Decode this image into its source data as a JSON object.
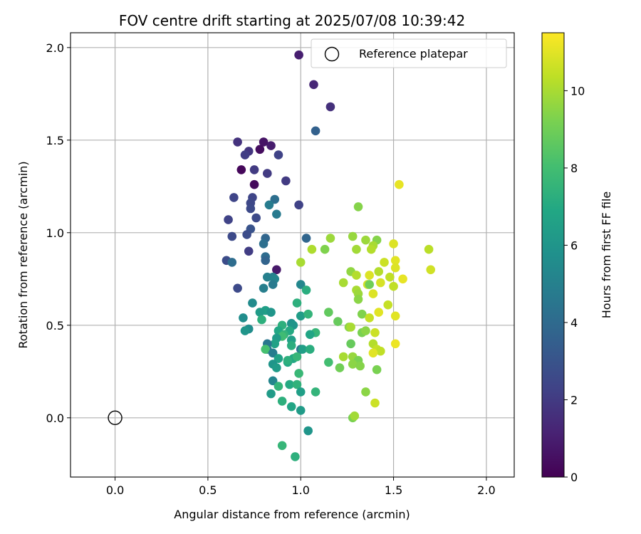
{
  "chart_data": {
    "type": "scatter",
    "title": "FOV centre drift starting at 2025/07/08 10:39:42",
    "xlabel": "Angular distance from reference (arcmin)",
    "ylabel": "Rotation from reference (arcmin)",
    "xlim": [
      -0.24,
      2.15
    ],
    "ylim": [
      -0.32,
      2.08
    ],
    "xticks": [
      0.0,
      0.5,
      1.0,
      1.5,
      2.0
    ],
    "xtick_labels": [
      "0.0",
      "0.5",
      "1.0",
      "1.5",
      "2.0"
    ],
    "yticks": [
      0.0,
      0.5,
      1.0,
      1.5,
      2.0
    ],
    "ytick_labels": [
      "0.0",
      "0.5",
      "1.0",
      "1.5",
      "2.0"
    ],
    "grid": true,
    "legend": {
      "label": "Reference platepar",
      "placement": "top-right"
    },
    "reference_point": {
      "x": 0.0,
      "y": 0.0
    },
    "colorbar": {
      "label": "Hours from first FF file",
      "range": [
        0,
        11.5
      ],
      "ticks": [
        0,
        2,
        4,
        6,
        8,
        10
      ],
      "tick_labels": [
        "0",
        "2",
        "4",
        "6",
        "8",
        "10"
      ],
      "colormap": "viridis"
    },
    "points": [
      {
        "x": 0.99,
        "y": 1.96,
        "c": 1.0
      },
      {
        "x": 1.07,
        "y": 1.8,
        "c": 1.3
      },
      {
        "x": 1.16,
        "y": 1.68,
        "c": 1.6
      },
      {
        "x": 1.08,
        "y": 1.55,
        "c": 3.6
      },
      {
        "x": 0.66,
        "y": 1.49,
        "c": 1.7
      },
      {
        "x": 0.8,
        "y": 1.49,
        "c": 0.6
      },
      {
        "x": 0.84,
        "y": 1.47,
        "c": 0.9
      },
      {
        "x": 0.78,
        "y": 1.45,
        "c": 0.4
      },
      {
        "x": 0.72,
        "y": 1.44,
        "c": 1.8
      },
      {
        "x": 0.7,
        "y": 1.42,
        "c": 2.1
      },
      {
        "x": 0.88,
        "y": 1.42,
        "c": 2.3
      },
      {
        "x": 0.68,
        "y": 1.34,
        "c": 0.2
      },
      {
        "x": 0.75,
        "y": 1.34,
        "c": 2.0
      },
      {
        "x": 0.82,
        "y": 1.32,
        "c": 2.0
      },
      {
        "x": 0.92,
        "y": 1.28,
        "c": 2.0
      },
      {
        "x": 0.75,
        "y": 1.26,
        "c": 0.3
      },
      {
        "x": 0.64,
        "y": 1.19,
        "c": 2.4
      },
      {
        "x": 0.74,
        "y": 1.19,
        "c": 2.4
      },
      {
        "x": 0.86,
        "y": 1.18,
        "c": 4.2
      },
      {
        "x": 0.73,
        "y": 1.16,
        "c": 2.5
      },
      {
        "x": 0.83,
        "y": 1.15,
        "c": 4.8
      },
      {
        "x": 0.73,
        "y": 1.13,
        "c": 2.6
      },
      {
        "x": 0.99,
        "y": 1.15,
        "c": 2.3
      },
      {
        "x": 0.87,
        "y": 1.1,
        "c": 4.7
      },
      {
        "x": 0.76,
        "y": 1.08,
        "c": 2.6
      },
      {
        "x": 0.61,
        "y": 1.07,
        "c": 2.3
      },
      {
        "x": 0.73,
        "y": 1.02,
        "c": 3.0
      },
      {
        "x": 0.71,
        "y": 0.99,
        "c": 2.7
      },
      {
        "x": 0.63,
        "y": 0.98,
        "c": 2.6
      },
      {
        "x": 0.81,
        "y": 0.97,
        "c": 3.8
      },
      {
        "x": 1.03,
        "y": 0.97,
        "c": 3.8
      },
      {
        "x": 0.8,
        "y": 0.94,
        "c": 4.2
      },
      {
        "x": 0.72,
        "y": 0.9,
        "c": 2.1
      },
      {
        "x": 0.81,
        "y": 0.87,
        "c": 4.1
      },
      {
        "x": 0.81,
        "y": 0.85,
        "c": 3.7
      },
      {
        "x": 0.6,
        "y": 0.85,
        "c": 2.7
      },
      {
        "x": 0.63,
        "y": 0.84,
        "c": 4.1
      },
      {
        "x": 0.87,
        "y": 0.8,
        "c": 0.8
      },
      {
        "x": 0.82,
        "y": 0.76,
        "c": 5.0
      },
      {
        "x": 0.85,
        "y": 0.76,
        "c": 5.0
      },
      {
        "x": 0.86,
        "y": 0.75,
        "c": 5.2
      },
      {
        "x": 0.85,
        "y": 0.72,
        "c": 4.7
      },
      {
        "x": 0.8,
        "y": 0.7,
        "c": 4.9
      },
      {
        "x": 0.66,
        "y": 0.7,
        "c": 2.6
      },
      {
        "x": 1.0,
        "y": 0.72,
        "c": 5.3
      },
      {
        "x": 1.03,
        "y": 0.69,
        "c": 7.2
      },
      {
        "x": 0.74,
        "y": 0.62,
        "c": 5.5
      },
      {
        "x": 0.98,
        "y": 0.62,
        "c": 7.3
      },
      {
        "x": 0.81,
        "y": 0.58,
        "c": 6.5
      },
      {
        "x": 0.84,
        "y": 0.57,
        "c": 6.0
      },
      {
        "x": 0.78,
        "y": 0.57,
        "c": 6.3
      },
      {
        "x": 1.0,
        "y": 0.55,
        "c": 6.4
      },
      {
        "x": 1.04,
        "y": 0.56,
        "c": 7.5
      },
      {
        "x": 0.69,
        "y": 0.54,
        "c": 5.6
      },
      {
        "x": 0.79,
        "y": 0.53,
        "c": 7.3
      },
      {
        "x": 0.95,
        "y": 0.51,
        "c": 5.8
      },
      {
        "x": 0.96,
        "y": 0.5,
        "c": 6.0
      },
      {
        "x": 0.9,
        "y": 0.5,
        "c": 7.3
      },
      {
        "x": 0.72,
        "y": 0.48,
        "c": 5.6
      },
      {
        "x": 0.7,
        "y": 0.47,
        "c": 6.0
      },
      {
        "x": 0.88,
        "y": 0.47,
        "c": 6.9
      },
      {
        "x": 0.94,
        "y": 0.47,
        "c": 7.0
      },
      {
        "x": 0.91,
        "y": 0.45,
        "c": 7.5
      },
      {
        "x": 1.08,
        "y": 0.46,
        "c": 7.6
      },
      {
        "x": 1.05,
        "y": 0.45,
        "c": 6.8
      },
      {
        "x": 0.9,
        "y": 0.44,
        "c": 7.9
      },
      {
        "x": 0.95,
        "y": 0.42,
        "c": 6.5
      },
      {
        "x": 0.87,
        "y": 0.43,
        "c": 6.3
      },
      {
        "x": 0.86,
        "y": 0.4,
        "c": 6.6
      },
      {
        "x": 0.82,
        "y": 0.4,
        "c": 4.5
      },
      {
        "x": 0.95,
        "y": 0.39,
        "c": 7.2
      },
      {
        "x": 0.82,
        "y": 0.37,
        "c": 4.5
      },
      {
        "x": 0.81,
        "y": 0.37,
        "c": 8.1
      },
      {
        "x": 1.0,
        "y": 0.37,
        "c": 4.5
      },
      {
        "x": 1.01,
        "y": 0.37,
        "c": 6.5
      },
      {
        "x": 1.05,
        "y": 0.37,
        "c": 7.2
      },
      {
        "x": 0.85,
        "y": 0.35,
        "c": 4.8
      },
      {
        "x": 0.88,
        "y": 0.32,
        "c": 6.6
      },
      {
        "x": 0.93,
        "y": 0.3,
        "c": 6.9
      },
      {
        "x": 0.96,
        "y": 0.32,
        "c": 6.9
      },
      {
        "x": 0.85,
        "y": 0.29,
        "c": 6.0
      },
      {
        "x": 0.87,
        "y": 0.27,
        "c": 6.3
      },
      {
        "x": 0.93,
        "y": 0.31,
        "c": 7.3
      },
      {
        "x": 0.98,
        "y": 0.33,
        "c": 7.6
      },
      {
        "x": 0.99,
        "y": 0.24,
        "c": 7.7
      },
      {
        "x": 1.15,
        "y": 0.3,
        "c": 8.0
      },
      {
        "x": 0.85,
        "y": 0.2,
        "c": 5.2
      },
      {
        "x": 0.88,
        "y": 0.17,
        "c": 7.5
      },
      {
        "x": 0.94,
        "y": 0.18,
        "c": 7.0
      },
      {
        "x": 0.98,
        "y": 0.18,
        "c": 7.4
      },
      {
        "x": 0.84,
        "y": 0.13,
        "c": 6.3
      },
      {
        "x": 1.0,
        "y": 0.14,
        "c": 6.5
      },
      {
        "x": 1.08,
        "y": 0.14,
        "c": 7.5
      },
      {
        "x": 0.9,
        "y": 0.09,
        "c": 7.3
      },
      {
        "x": 0.95,
        "y": 0.06,
        "c": 6.8
      },
      {
        "x": 1.0,
        "y": 0.04,
        "c": 6.3
      },
      {
        "x": 1.04,
        "y": -0.07,
        "c": 6.0
      },
      {
        "x": 0.9,
        "y": -0.15,
        "c": 7.6
      },
      {
        "x": 0.97,
        "y": -0.21,
        "c": 7.3
      },
      {
        "x": 1.16,
        "y": 0.97,
        "c": 9.8
      },
      {
        "x": 1.28,
        "y": 0.98,
        "c": 9.7
      },
      {
        "x": 1.35,
        "y": 0.96,
        "c": 9.8
      },
      {
        "x": 1.41,
        "y": 0.96,
        "c": 9.4
      },
      {
        "x": 1.5,
        "y": 0.94,
        "c": 10.9
      },
      {
        "x": 1.39,
        "y": 0.93,
        "c": 10.0
      },
      {
        "x": 1.3,
        "y": 0.91,
        "c": 9.9
      },
      {
        "x": 1.13,
        "y": 0.91,
        "c": 9.3
      },
      {
        "x": 1.06,
        "y": 0.91,
        "c": 10.1
      },
      {
        "x": 1.38,
        "y": 0.91,
        "c": 10.2
      },
      {
        "x": 1.69,
        "y": 0.91,
        "c": 10.3
      },
      {
        "x": 1.51,
        "y": 0.85,
        "c": 11.0
      },
      {
        "x": 1.45,
        "y": 0.84,
        "c": 10.6
      },
      {
        "x": 1.0,
        "y": 0.84,
        "c": 10.0
      },
      {
        "x": 1.51,
        "y": 0.81,
        "c": 10.9
      },
      {
        "x": 1.42,
        "y": 0.79,
        "c": 10.2
      },
      {
        "x": 1.27,
        "y": 0.79,
        "c": 9.6
      },
      {
        "x": 1.7,
        "y": 0.8,
        "c": 10.7
      },
      {
        "x": 1.37,
        "y": 0.77,
        "c": 10.9
      },
      {
        "x": 1.3,
        "y": 0.77,
        "c": 10.2
      },
      {
        "x": 1.48,
        "y": 0.76,
        "c": 10.4
      },
      {
        "x": 1.55,
        "y": 0.75,
        "c": 11.1
      },
      {
        "x": 1.43,
        "y": 0.73,
        "c": 10.8
      },
      {
        "x": 1.23,
        "y": 0.73,
        "c": 10.0
      },
      {
        "x": 1.36,
        "y": 0.72,
        "c": 10.7
      },
      {
        "x": 1.37,
        "y": 0.72,
        "c": 9.0
      },
      {
        "x": 1.5,
        "y": 0.71,
        "c": 10.4
      },
      {
        "x": 1.3,
        "y": 0.69,
        "c": 10.0
      },
      {
        "x": 1.31,
        "y": 0.67,
        "c": 9.8
      },
      {
        "x": 1.39,
        "y": 0.67,
        "c": 10.9
      },
      {
        "x": 1.31,
        "y": 0.64,
        "c": 9.5
      },
      {
        "x": 1.47,
        "y": 0.61,
        "c": 10.5
      },
      {
        "x": 1.42,
        "y": 0.57,
        "c": 11.0
      },
      {
        "x": 1.33,
        "y": 0.56,
        "c": 9.3
      },
      {
        "x": 1.15,
        "y": 0.57,
        "c": 8.7
      },
      {
        "x": 1.51,
        "y": 0.55,
        "c": 11.0
      },
      {
        "x": 1.37,
        "y": 0.54,
        "c": 10.5
      },
      {
        "x": 1.2,
        "y": 0.52,
        "c": 8.8
      },
      {
        "x": 1.26,
        "y": 0.49,
        "c": 9.5
      },
      {
        "x": 1.27,
        "y": 0.49,
        "c": 10.0
      },
      {
        "x": 1.33,
        "y": 0.46,
        "c": 9.2
      },
      {
        "x": 1.35,
        "y": 0.47,
        "c": 9.5
      },
      {
        "x": 1.4,
        "y": 0.46,
        "c": 10.6
      },
      {
        "x": 1.39,
        "y": 0.4,
        "c": 10.2
      },
      {
        "x": 1.51,
        "y": 0.4,
        "c": 11.2
      },
      {
        "x": 1.27,
        "y": 0.4,
        "c": 8.8
      },
      {
        "x": 1.41,
        "y": 0.37,
        "c": 10.5
      },
      {
        "x": 1.43,
        "y": 0.36,
        "c": 10.4
      },
      {
        "x": 1.39,
        "y": 0.35,
        "c": 11.0
      },
      {
        "x": 1.23,
        "y": 0.33,
        "c": 10.0
      },
      {
        "x": 1.28,
        "y": 0.33,
        "c": 9.7
      },
      {
        "x": 1.31,
        "y": 0.31,
        "c": 9.2
      },
      {
        "x": 1.28,
        "y": 0.29,
        "c": 9.5
      },
      {
        "x": 1.32,
        "y": 0.28,
        "c": 9.4
      },
      {
        "x": 1.21,
        "y": 0.27,
        "c": 9.0
      },
      {
        "x": 1.41,
        "y": 0.26,
        "c": 9.2
      },
      {
        "x": 1.35,
        "y": 0.14,
        "c": 9.5
      },
      {
        "x": 1.4,
        "y": 0.08,
        "c": 10.6
      },
      {
        "x": 1.28,
        "y": 0.0,
        "c": 9.2
      },
      {
        "x": 1.29,
        "y": 0.01,
        "c": 9.9
      },
      {
        "x": 1.31,
        "y": 1.14,
        "c": 9.4
      },
      {
        "x": 1.53,
        "y": 1.26,
        "c": 11.1
      }
    ]
  }
}
